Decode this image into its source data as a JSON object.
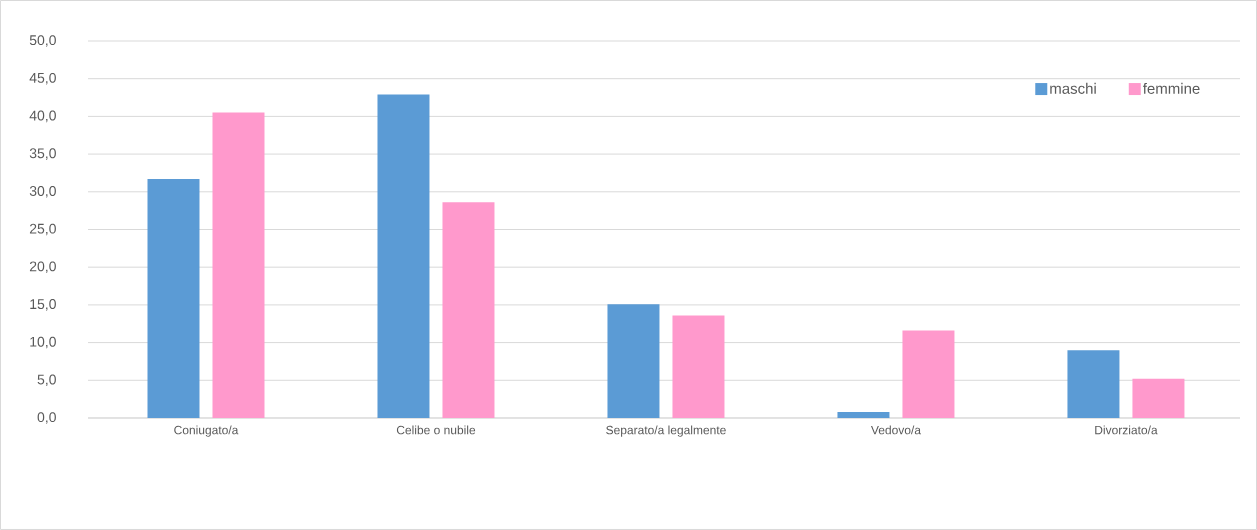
{
  "chart_data": {
    "type": "bar",
    "categories": [
      "Coniugato/a",
      "Celibe o nubile",
      "Separato/a legalmente",
      "Vedovo/a",
      "Divorziato/a"
    ],
    "series": [
      {
        "name": "maschi",
        "color": "#5b9bd5",
        "values": [
          31.7,
          42.9,
          15.1,
          0.8,
          9.0
        ]
      },
      {
        "name": "femmine",
        "color": "#ff99cc",
        "values": [
          40.5,
          28.6,
          13.6,
          11.6,
          5.2
        ]
      }
    ],
    "ylim": [
      0,
      50
    ],
    "yticks": [
      {
        "value": 0,
        "label": "0,0"
      },
      {
        "value": 5,
        "label": "5,0"
      },
      {
        "value": 10,
        "label": "10,0"
      },
      {
        "value": 15,
        "label": "15,0"
      },
      {
        "value": 20,
        "label": "20,0"
      },
      {
        "value": 25,
        "label": "25,0"
      },
      {
        "value": 30,
        "label": "30,0"
      },
      {
        "value": 35,
        "label": "35,0"
      },
      {
        "value": 40,
        "label": "40,0"
      },
      {
        "value": 45,
        "label": "45,0"
      },
      {
        "value": 50,
        "label": "50,0"
      }
    ],
    "grid": "y",
    "legend": "top right"
  }
}
